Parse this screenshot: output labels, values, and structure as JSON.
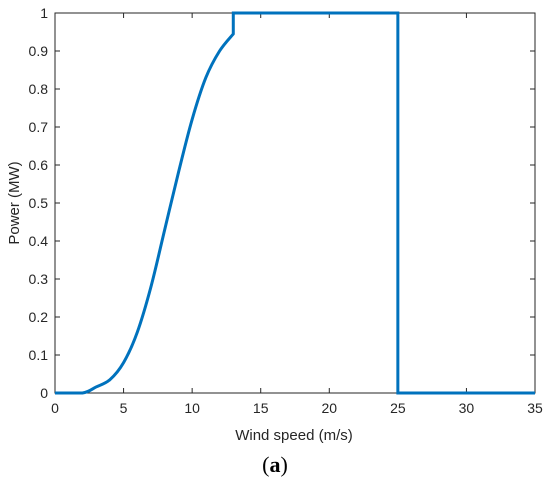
{
  "chart_data": {
    "type": "line",
    "xlabel": "Wind speed (m/s)",
    "ylabel": "Power (MW)",
    "xlim": [
      0,
      35
    ],
    "ylim": [
      0,
      1
    ],
    "xticks": [
      0,
      5,
      10,
      15,
      20,
      25,
      30,
      35
    ],
    "yticks": [
      0,
      0.1,
      0.2,
      0.3,
      0.4,
      0.5,
      0.6,
      0.7,
      0.8,
      0.9,
      1
    ],
    "grid": false,
    "series": [
      {
        "color": "#0072BD",
        "x": [
          0,
          2,
          3,
          4,
          5,
          6,
          7,
          8,
          9,
          10,
          11,
          12,
          13,
          13,
          25,
          25,
          35
        ],
        "y": [
          0,
          0,
          0.016,
          0.035,
          0.08,
          0.16,
          0.28,
          0.43,
          0.58,
          0.72,
          0.83,
          0.9,
          0.945,
          1,
          1,
          0,
          0
        ]
      }
    ]
  },
  "caption": {
    "open": "(",
    "letter": "a",
    "close": ")"
  }
}
